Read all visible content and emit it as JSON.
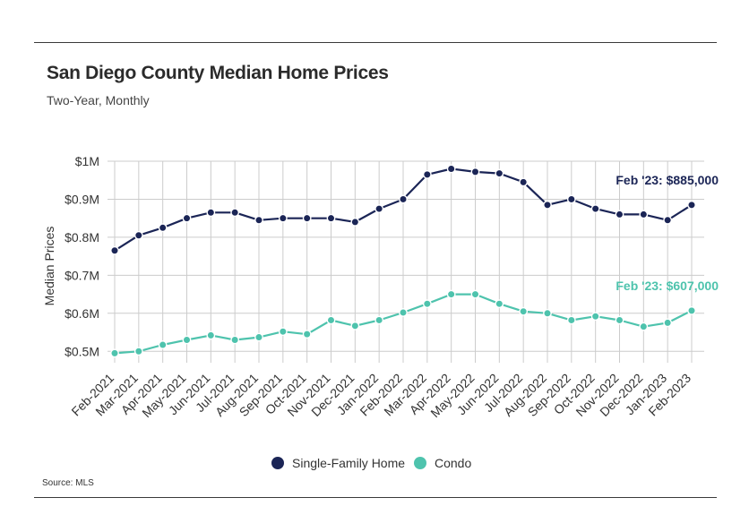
{
  "title": "San Diego County Median Home Prices",
  "subtitle": "Two-Year, Monthly",
  "source": "Source: MLS",
  "colors": {
    "sfh": "#1b2556",
    "condo": "#4ec3ad",
    "grid": "#cccccc",
    "rule": "#3a3a3a"
  },
  "chart_data": {
    "type": "line",
    "ylabel": "Median Prices",
    "xlabel": "",
    "ylim": [
      0.47,
      1.0
    ],
    "yticks": [
      {
        "value": 1.0,
        "label": "$1M"
      },
      {
        "value": 0.9,
        "label": "$0.9M"
      },
      {
        "value": 0.8,
        "label": "$0.8M"
      },
      {
        "value": 0.7,
        "label": "$0.7M"
      },
      {
        "value": 0.6,
        "label": "$0.6M"
      },
      {
        "value": 0.5,
        "label": "$0.5M"
      }
    ],
    "categories": [
      "Feb-2021",
      "Mar-2021",
      "Apr-2021",
      "May-2021",
      "Jun-2021",
      "Jul-2021",
      "Aug-2021",
      "Sep-2021",
      "Oct-2021",
      "Nov-2021",
      "Dec-2021",
      "Jan-2022",
      "Feb-2022",
      "Mar-2022",
      "Apr-2022",
      "May-2022",
      "Jun-2022",
      "Jul-2022",
      "Aug-2022",
      "Sep-2022",
      "Oct-2022",
      "Nov-2022",
      "Dec-2022",
      "Jan-2023",
      "Feb-2023"
    ],
    "series": [
      {
        "key": "sfh",
        "name": "Single-Family Home",
        "color": "#1b2556",
        "values": [
          0.765,
          0.805,
          0.825,
          0.85,
          0.865,
          0.865,
          0.845,
          0.85,
          0.85,
          0.85,
          0.84,
          0.875,
          0.9,
          0.965,
          0.98,
          0.972,
          0.968,
          0.945,
          0.885,
          0.9,
          0.875,
          0.86,
          0.86,
          0.845,
          0.885
        ],
        "end_label": "Feb '23: $885,000"
      },
      {
        "key": "condo",
        "name": "Condo",
        "color": "#4ec3ad",
        "values": [
          0.495,
          0.5,
          0.517,
          0.53,
          0.542,
          0.53,
          0.537,
          0.552,
          0.545,
          0.582,
          0.567,
          0.582,
          0.602,
          0.625,
          0.65,
          0.65,
          0.625,
          0.605,
          0.6,
          0.582,
          0.592,
          0.582,
          0.565,
          0.575,
          0.607
        ],
        "end_label": "Feb '23: $607,000"
      }
    ],
    "legend_position": "bottom-center",
    "grid": true
  }
}
